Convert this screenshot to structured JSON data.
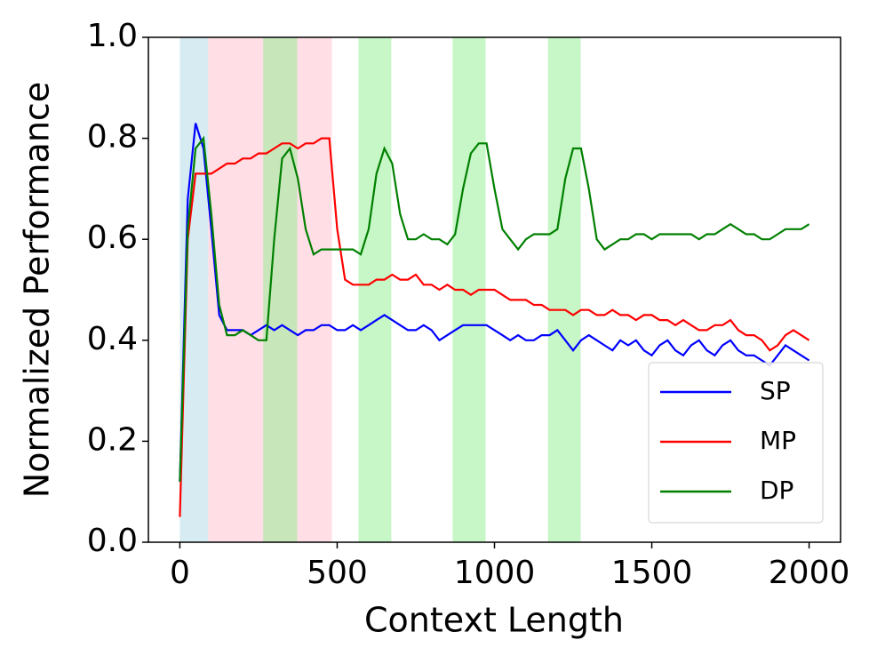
{
  "chart_data": {
    "type": "line",
    "x_label": "Context Length",
    "y_label": "Normalized Performance",
    "xlim": [
      -100,
      2100
    ],
    "ylim": [
      0,
      1
    ],
    "xticks": [
      0,
      500,
      1000,
      1500,
      2000
    ],
    "yticks": [
      {
        "value": 0,
        "label": "0.0"
      },
      {
        "value": 0.2,
        "label": "0.2"
      },
      {
        "value": 0.4,
        "label": "0.4"
      },
      {
        "value": 0.6,
        "label": "0.6"
      },
      {
        "value": 0.8,
        "label": "0.8"
      },
      {
        "value": 1,
        "label": "1.0"
      }
    ],
    "legend": "lower right",
    "spans": [
      {
        "start": 0,
        "end": 90,
        "color": "#add8e6"
      },
      {
        "start": 90,
        "end": 483,
        "color": "#ffc0cb"
      },
      {
        "start": 265,
        "end": 373,
        "color": "#90ee90"
      },
      {
        "start": 568,
        "end": 672,
        "color": "#90ee90"
      },
      {
        "start": 867,
        "end": 972,
        "color": "#90ee90"
      },
      {
        "start": 1170,
        "end": 1274,
        "color": "#90ee90"
      }
    ],
    "x": [
      0,
      25,
      50,
      75,
      100,
      125,
      150,
      175,
      200,
      225,
      250,
      275,
      300,
      325,
      350,
      375,
      400,
      425,
      450,
      475,
      500,
      525,
      550,
      575,
      600,
      625,
      650,
      675,
      700,
      725,
      750,
      775,
      800,
      825,
      850,
      875,
      900,
      925,
      950,
      975,
      1000,
      1025,
      1050,
      1075,
      1100,
      1125,
      1150,
      1175,
      1200,
      1225,
      1250,
      1275,
      1300,
      1325,
      1350,
      1375,
      1400,
      1425,
      1450,
      1475,
      1500,
      1525,
      1550,
      1575,
      1600,
      1625,
      1650,
      1675,
      1700,
      1725,
      1750,
      1775,
      1800,
      1825,
      1850,
      1875,
      1900,
      1925,
      1950,
      1975,
      2000
    ],
    "series": [
      {
        "name": "SP",
        "color": "#0000ff",
        "values": [
          0.12,
          0.68,
          0.83,
          0.78,
          0.62,
          0.45,
          0.42,
          0.42,
          0.42,
          0.41,
          0.42,
          0.43,
          0.42,
          0.43,
          0.42,
          0.41,
          0.42,
          0.42,
          0.43,
          0.43,
          0.42,
          0.42,
          0.43,
          0.42,
          0.43,
          0.44,
          0.45,
          0.44,
          0.43,
          0.42,
          0.42,
          0.43,
          0.42,
          0.4,
          0.41,
          0.42,
          0.43,
          0.43,
          0.43,
          0.43,
          0.42,
          0.41,
          0.4,
          0.41,
          0.4,
          0.4,
          0.41,
          0.41,
          0.42,
          0.4,
          0.38,
          0.4,
          0.41,
          0.4,
          0.39,
          0.38,
          0.4,
          0.39,
          0.4,
          0.38,
          0.37,
          0.39,
          0.4,
          0.38,
          0.37,
          0.39,
          0.4,
          0.38,
          0.37,
          0.39,
          0.4,
          0.38,
          0.37,
          0.37,
          0.36,
          0.35,
          0.37,
          0.39,
          0.38,
          0.37,
          0.36
        ]
      },
      {
        "name": "MP",
        "color": "#ff0000",
        "values": [
          0.05,
          0.6,
          0.73,
          0.73,
          0.73,
          0.74,
          0.75,
          0.75,
          0.76,
          0.76,
          0.77,
          0.77,
          0.78,
          0.79,
          0.79,
          0.78,
          0.79,
          0.79,
          0.8,
          0.8,
          0.62,
          0.52,
          0.51,
          0.51,
          0.51,
          0.52,
          0.52,
          0.53,
          0.52,
          0.52,
          0.53,
          0.51,
          0.51,
          0.5,
          0.51,
          0.5,
          0.5,
          0.49,
          0.5,
          0.5,
          0.5,
          0.49,
          0.48,
          0.48,
          0.48,
          0.47,
          0.47,
          0.46,
          0.46,
          0.46,
          0.45,
          0.46,
          0.46,
          0.45,
          0.45,
          0.46,
          0.45,
          0.45,
          0.44,
          0.45,
          0.45,
          0.44,
          0.44,
          0.43,
          0.44,
          0.43,
          0.42,
          0.42,
          0.43,
          0.43,
          0.44,
          0.42,
          0.41,
          0.41,
          0.4,
          0.38,
          0.39,
          0.41,
          0.42,
          0.41,
          0.4
        ]
      },
      {
        "name": "DP",
        "color": "#008000",
        "values": [
          0.12,
          0.62,
          0.78,
          0.8,
          0.65,
          0.47,
          0.41,
          0.41,
          0.42,
          0.41,
          0.4,
          0.4,
          0.6,
          0.76,
          0.78,
          0.72,
          0.62,
          0.57,
          0.58,
          0.58,
          0.58,
          0.58,
          0.58,
          0.57,
          0.62,
          0.73,
          0.78,
          0.75,
          0.65,
          0.6,
          0.6,
          0.61,
          0.6,
          0.6,
          0.59,
          0.61,
          0.7,
          0.77,
          0.79,
          0.79,
          0.7,
          0.62,
          0.6,
          0.58,
          0.6,
          0.61,
          0.61,
          0.61,
          0.62,
          0.72,
          0.78,
          0.78,
          0.7,
          0.6,
          0.58,
          0.59,
          0.6,
          0.6,
          0.61,
          0.61,
          0.6,
          0.61,
          0.61,
          0.61,
          0.61,
          0.61,
          0.6,
          0.61,
          0.61,
          0.62,
          0.63,
          0.62,
          0.61,
          0.61,
          0.6,
          0.6,
          0.61,
          0.62,
          0.62,
          0.62,
          0.63
        ]
      }
    ]
  }
}
